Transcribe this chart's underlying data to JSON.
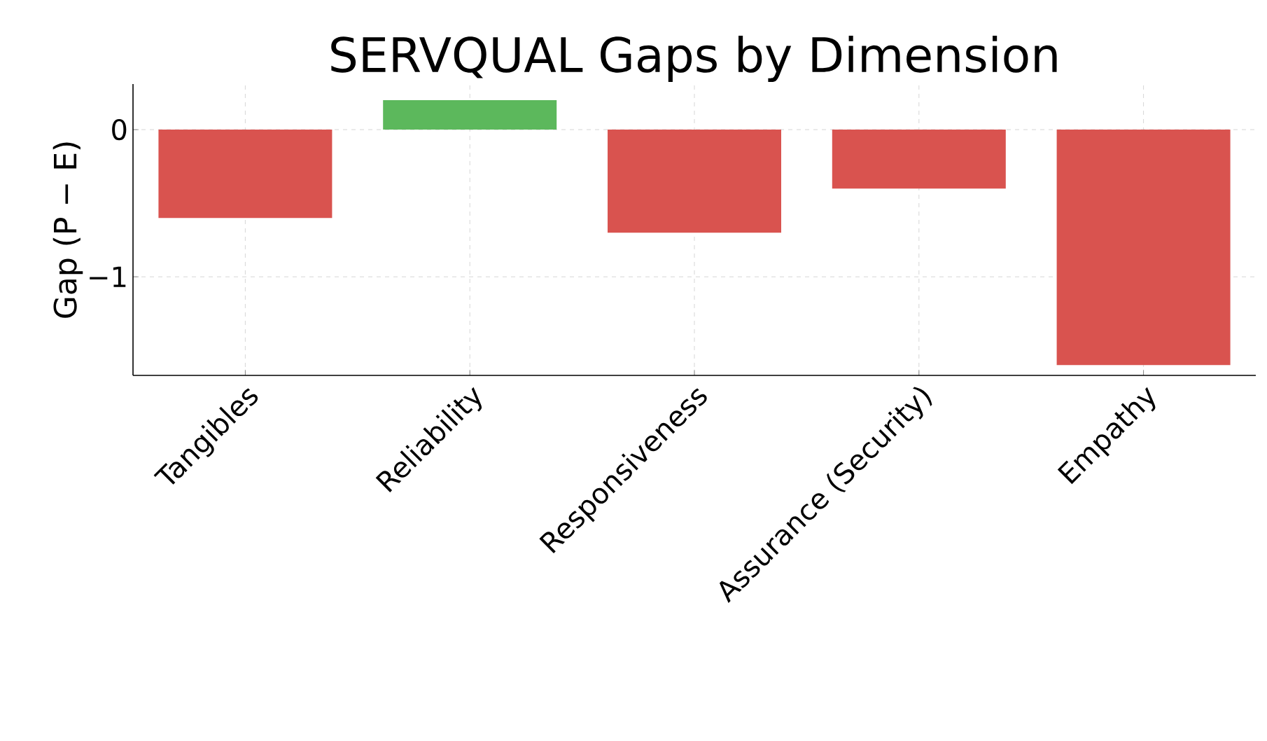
{
  "chart_data": {
    "type": "bar",
    "title": "SERVQUAL Gaps by Dimension",
    "ylabel": "Gap (P − E)",
    "categories": [
      "Tangibles",
      "Reliability",
      "Responsiveness",
      "Assurance (Security)",
      "Empathy"
    ],
    "values": [
      -0.6,
      0.2,
      -0.7,
      -0.4,
      -1.6
    ],
    "colors": [
      "#d9534f",
      "#5cb85c",
      "#d9534f",
      "#d9534f",
      "#d9534f"
    ],
    "ylim": [
      -1.67,
      0.31
    ],
    "yticks": [
      0,
      {
        "value": -1,
        "label": "−1"
      }
    ],
    "grid": true
  }
}
